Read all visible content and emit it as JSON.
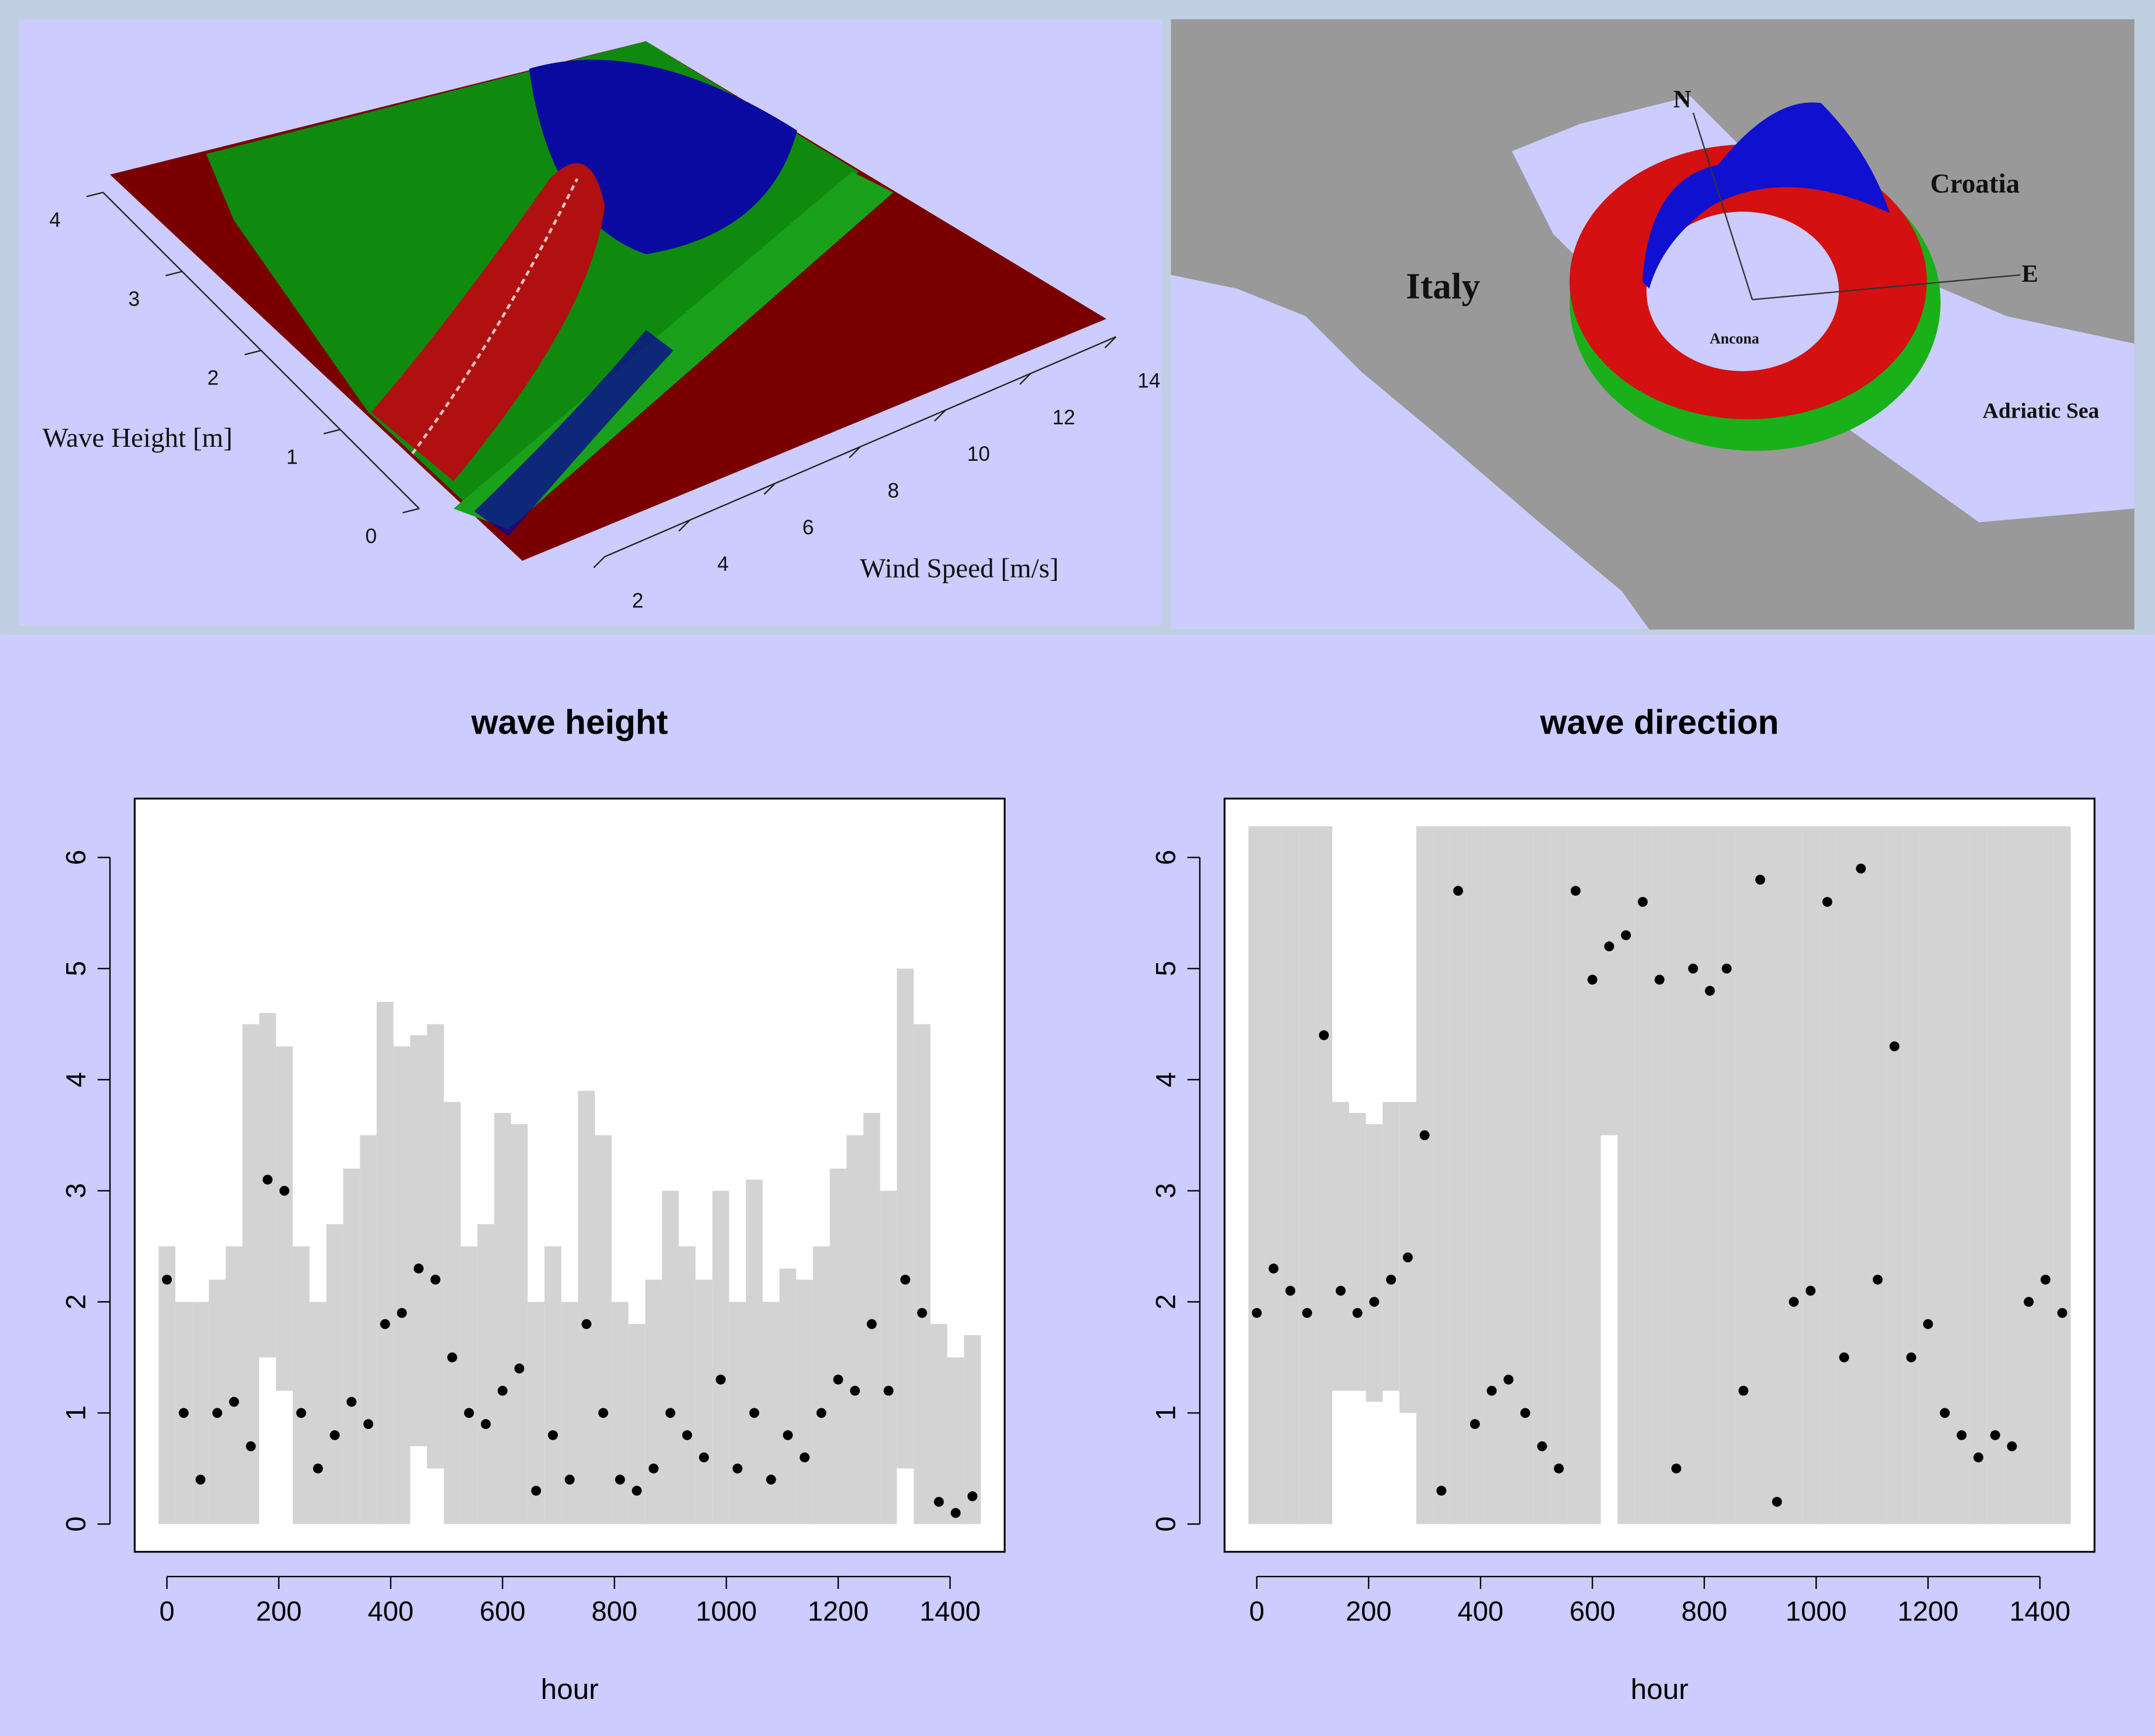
{
  "chart_data": [
    {
      "type": "surface",
      "xlabel": "Wind Speed [m/s]",
      "ylabel": "Wave Height [m]",
      "xticks": [
        2,
        4,
        6,
        8,
        10,
        12,
        14
      ],
      "yticks": [
        0,
        1,
        2,
        3,
        4
      ]
    },
    {
      "type": "map",
      "labels": [
        "Italy",
        "Croatia",
        "Adriatic Sea",
        "Ancona",
        "N",
        "E"
      ]
    },
    {
      "type": "scatter",
      "title": "wave height",
      "xlabel": "hour",
      "xlim": [
        -57.6,
        1497.6
      ],
      "ylim": [
        -0.25,
        6.53
      ],
      "xticks": [
        0,
        200,
        400,
        600,
        800,
        1000,
        1200,
        1400
      ],
      "yticks": [
        0,
        1,
        2,
        3,
        4,
        5,
        6
      ],
      "x": [
        0,
        30,
        60,
        90,
        120,
        150,
        180,
        210,
        240,
        270,
        300,
        330,
        360,
        390,
        420,
        450,
        480,
        510,
        540,
        570,
        600,
        630,
        660,
        690,
        720,
        750,
        780,
        810,
        840,
        870,
        900,
        930,
        960,
        990,
        1020,
        1050,
        1080,
        1110,
        1140,
        1170,
        1200,
        1230,
        1260,
        1290,
        1320,
        1350,
        1380,
        1410,
        1440
      ],
      "values": [
        2.2,
        1.0,
        0.4,
        1.0,
        1.1,
        0.7,
        3.1,
        3.0,
        1.0,
        0.5,
        0.8,
        1.1,
        0.9,
        1.8,
        1.9,
        2.3,
        2.2,
        1.5,
        1.0,
        0.9,
        1.2,
        1.4,
        0.3,
        0.8,
        0.4,
        1.8,
        1.0,
        0.4,
        0.3,
        0.5,
        1.0,
        0.8,
        0.6,
        1.3,
        0.5,
        1.0,
        0.4,
        0.8,
        0.6,
        1.0,
        1.3,
        1.2,
        1.8,
        1.2,
        2.2,
        1.9,
        0.2,
        0.1,
        0.25
      ],
      "color": "#000000",
      "band": {
        "color": "#d3d3d3",
        "lower": [
          0,
          0,
          0,
          0,
          0,
          0,
          1.5,
          1.2,
          0,
          0,
          0,
          0,
          0,
          0,
          0,
          0.7,
          0.5,
          0,
          0,
          0,
          0,
          0,
          0,
          0,
          0,
          0,
          0,
          0,
          0,
          0,
          0,
          0,
          0,
          0,
          0,
          0,
          0,
          0,
          0,
          0,
          0,
          0,
          0,
          0,
          0.5,
          0,
          0,
          0,
          0
        ],
        "upper": [
          2.5,
          2.0,
          2.0,
          2.2,
          2.5,
          4.5,
          4.6,
          4.3,
          2.5,
          2.0,
          2.7,
          3.2,
          3.5,
          4.7,
          4.3,
          4.4,
          4.5,
          3.8,
          2.5,
          2.7,
          3.7,
          3.6,
          2.0,
          2.5,
          2.0,
          3.9,
          3.5,
          2.0,
          1.8,
          2.2,
          3.0,
          2.5,
          2.2,
          3.0,
          2.0,
          3.1,
          2.0,
          2.3,
          2.2,
          2.5,
          3.2,
          3.5,
          3.7,
          3.0,
          5.0,
          4.5,
          1.8,
          1.5,
          1.7
        ]
      }
    },
    {
      "type": "scatter",
      "title": "wave direction",
      "xlabel": "hour",
      "xlim": [
        -57.6,
        1497.6
      ],
      "ylim": [
        -0.25,
        6.53
      ],
      "xticks": [
        0,
        200,
        400,
        600,
        800,
        1000,
        1200,
        1400
      ],
      "yticks": [
        0,
        1,
        2,
        3,
        4,
        5,
        6
      ],
      "x": [
        0,
        30,
        60,
        90,
        120,
        150,
        180,
        210,
        240,
        270,
        300,
        330,
        360,
        390,
        420,
        450,
        480,
        510,
        540,
        570,
        600,
        630,
        660,
        690,
        720,
        750,
        780,
        810,
        840,
        870,
        900,
        930,
        960,
        990,
        1020,
        1050,
        1080,
        1110,
        1140,
        1170,
        1200,
        1230,
        1260,
        1290,
        1320,
        1350,
        1380,
        1410,
        1440
      ],
      "values": [
        1.9,
        2.3,
        2.1,
        1.9,
        4.4,
        2.1,
        1.9,
        2.0,
        2.2,
        2.4,
        3.5,
        0.3,
        5.7,
        0.9,
        1.2,
        1.3,
        1.0,
        0.7,
        0.5,
        5.7,
        4.9,
        5.2,
        5.3,
        5.6,
        4.9,
        0.5,
        5.0,
        4.8,
        5.0,
        1.2,
        5.8,
        0.2,
        2.0,
        2.1,
        5.6,
        1.5,
        5.9,
        2.2,
        4.3,
        1.5,
        1.8,
        1.0,
        0.8,
        0.6,
        0.8,
        0.7,
        2.0,
        2.2,
        1.9
      ],
      "color": "#000000",
      "band": {
        "color": "#d3d3d3",
        "lower": [
          0,
          0,
          0,
          0,
          0,
          1.2,
          1.2,
          1.1,
          1.2,
          1.0,
          0,
          0,
          0,
          0,
          0,
          0,
          0,
          0,
          0,
          0,
          0,
          3.5,
          0,
          0,
          0,
          0,
          0,
          0,
          0,
          0,
          0,
          0,
          0,
          0,
          0,
          0,
          0,
          0,
          0,
          0,
          0,
          0,
          0,
          0,
          0,
          0,
          0,
          0,
          0
        ],
        "upper": [
          6.28,
          6.28,
          6.28,
          6.28,
          6.28,
          3.8,
          3.7,
          3.6,
          3.8,
          3.8,
          6.28,
          6.28,
          6.28,
          6.28,
          6.28,
          6.28,
          6.28,
          6.28,
          6.28,
          6.28,
          6.28,
          6.28,
          6.28,
          6.28,
          6.28,
          6.28,
          6.28,
          6.28,
          6.28,
          6.28,
          6.28,
          6.28,
          6.28,
          6.28,
          6.28,
          6.28,
          6.28,
          6.28,
          6.28,
          6.28,
          6.28,
          6.28,
          6.28,
          6.28,
          6.28,
          6.28,
          6.28,
          6.28,
          6.28
        ]
      }
    }
  ]
}
